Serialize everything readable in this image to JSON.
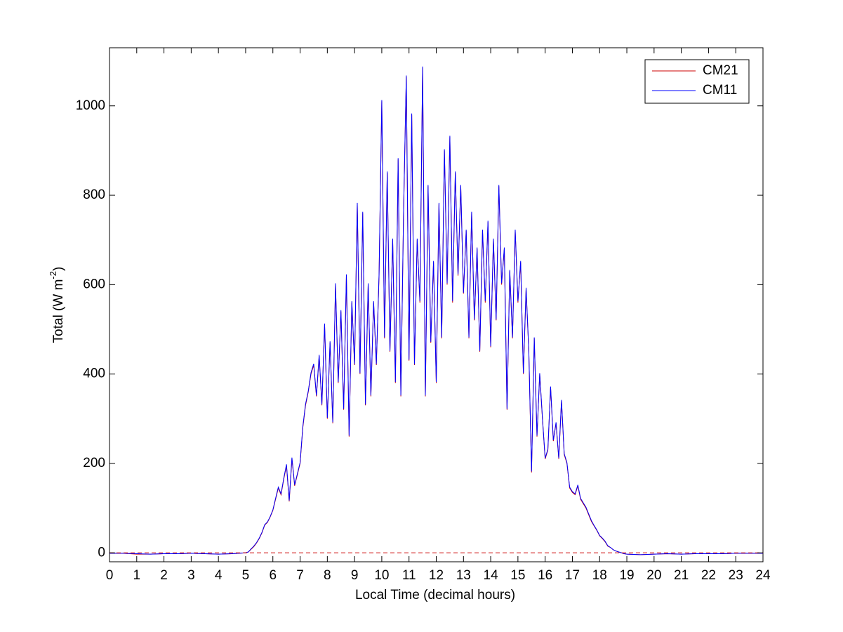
{
  "chart_data": {
    "type": "line",
    "xlabel": "Local Time (decimal hours)",
    "ylabel": {
      "text": "Total (W m",
      "superscript": "-2",
      "suffix": ")"
    },
    "legend": "upper right",
    "xlim": [
      0,
      24
    ],
    "ylim": [
      -20,
      1130
    ],
    "xticks": [
      0,
      1,
      2,
      3,
      4,
      5,
      6,
      7,
      8,
      9,
      10,
      11,
      12,
      13,
      14,
      15,
      16,
      17,
      18,
      19,
      20,
      21,
      22,
      23,
      24
    ],
    "yticks": [
      0,
      200,
      400,
      600,
      800,
      1000
    ],
    "reference_line": {
      "value": 0,
      "color": "#cc0000"
    },
    "x": [
      0,
      0.5,
      1,
      1.5,
      2,
      2.5,
      3,
      3.5,
      4,
      4.5,
      5.0,
      5.1,
      5.2,
      5.3,
      5.4,
      5.5,
      5.6,
      5.7,
      5.8,
      5.9,
      6.0,
      6.1,
      6.2,
      6.3,
      6.4,
      6.5,
      6.6,
      6.7,
      6.8,
      6.9,
      7.0,
      7.1,
      7.2,
      7.3,
      7.4,
      7.5,
      7.6,
      7.7,
      7.8,
      7.9,
      8.0,
      8.1,
      8.2,
      8.3,
      8.4,
      8.5,
      8.6,
      8.7,
      8.8,
      8.9,
      9.0,
      9.1,
      9.2,
      9.3,
      9.4,
      9.5,
      9.6,
      9.7,
      9.8,
      9.9,
      10.0,
      10.1,
      10.2,
      10.3,
      10.4,
      10.5,
      10.6,
      10.7,
      10.8,
      10.9,
      11.0,
      11.1,
      11.2,
      11.3,
      11.4,
      11.5,
      11.6,
      11.7,
      11.8,
      11.9,
      12.0,
      12.1,
      12.2,
      12.3,
      12.4,
      12.5,
      12.6,
      12.7,
      12.8,
      12.9,
      13.0,
      13.1,
      13.2,
      13.3,
      13.4,
      13.5,
      13.6,
      13.7,
      13.8,
      13.9,
      14.0,
      14.1,
      14.2,
      14.3,
      14.4,
      14.5,
      14.6,
      14.7,
      14.8,
      14.9,
      15.0,
      15.1,
      15.2,
      15.3,
      15.4,
      15.5,
      15.6,
      15.7,
      15.8,
      15.9,
      16.0,
      16.1,
      16.2,
      16.3,
      16.4,
      16.5,
      16.6,
      16.7,
      16.8,
      16.9,
      17.0,
      17.1,
      17.2,
      17.3,
      17.4,
      17.5,
      17.6,
      17.7,
      17.8,
      17.9,
      18.0,
      18.1,
      18.2,
      18.3,
      18.4,
      18.5,
      18.6,
      18.7,
      18.8,
      18.9,
      19.0,
      19.5,
      20,
      20.5,
      21,
      21.5,
      22,
      22.5,
      23,
      23.5,
      24
    ],
    "series": [
      {
        "name": "CM21",
        "color": "#cc0000",
        "values": [
          -1,
          -1,
          -3,
          -3,
          -2,
          -2,
          -1,
          -2,
          -3,
          -2,
          0,
          2,
          8,
          14,
          22,
          32,
          45,
          62,
          68,
          80,
          95,
          120,
          145,
          130,
          165,
          195,
          115,
          210,
          150,
          175,
          200,
          280,
          330,
          360,
          400,
          420,
          350,
          440,
          330,
          510,
          300,
          470,
          290,
          600,
          380,
          540,
          320,
          620,
          260,
          560,
          420,
          780,
          400,
          760,
          330,
          600,
          350,
          560,
          420,
          620,
          1010,
          480,
          850,
          450,
          700,
          380,
          880,
          350,
          760,
          1065,
          430,
          980,
          420,
          700,
          560,
          1085,
          350,
          820,
          470,
          650,
          380,
          780,
          480,
          900,
          600,
          930,
          560,
          850,
          620,
          820,
          580,
          720,
          480,
          760,
          520,
          680,
          450,
          720,
          560,
          740,
          460,
          700,
          520,
          820,
          600,
          680,
          320,
          630,
          480,
          720,
          560,
          650,
          400,
          590,
          450,
          180,
          480,
          260,
          400,
          300,
          210,
          230,
          370,
          250,
          290,
          210,
          340,
          220,
          200,
          145,
          135,
          130,
          150,
          120,
          110,
          100,
          85,
          70,
          60,
          50,
          38,
          32,
          25,
          15,
          12,
          7,
          4,
          2,
          0,
          -2,
          -3,
          -4,
          -3,
          -2,
          -3,
          -2,
          -2,
          -2,
          -1,
          -1,
          -1
        ]
      },
      {
        "name": "CM11",
        "color": "#0000ff",
        "values": [
          -1,
          -1,
          -2,
          -3,
          -2,
          -2,
          -1,
          -2,
          -3,
          -2,
          0,
          2,
          9,
          15,
          23,
          33,
          46,
          63,
          69,
          81,
          96,
          122,
          147,
          132,
          167,
          198,
          117,
          213,
          152,
          177,
          202,
          283,
          333,
          362,
          403,
          423,
          352,
          443,
          332,
          513,
          302,
          473,
          292,
          603,
          382,
          543,
          322,
          623,
          262,
          563,
          422,
          783,
          402,
          763,
          332,
          603,
          352,
          563,
          422,
          623,
          1013,
          482,
          853,
          452,
          703,
          382,
          883,
          352,
          763,
          1068,
          432,
          983,
          422,
          703,
          563,
          1088,
          352,
          823,
          472,
          653,
          382,
          783,
          482,
          903,
          603,
          933,
          563,
          853,
          623,
          823,
          582,
          723,
          482,
          763,
          522,
          683,
          452,
          723,
          563,
          743,
          462,
          703,
          522,
          823,
          603,
          683,
          322,
          633,
          482,
          723,
          563,
          653,
          402,
          593,
          452,
          182,
          482,
          262,
          402,
          302,
          212,
          232,
          372,
          252,
          292,
          212,
          342,
          222,
          202,
          147,
          137,
          132,
          152,
          122,
          112,
          102,
          87,
          72,
          61,
          51,
          39,
          33,
          26,
          16,
          12,
          7,
          4,
          2,
          0,
          -2,
          -3,
          -4,
          -3,
          -2,
          -3,
          -2,
          -2,
          -2,
          -1,
          -1,
          -1
        ]
      }
    ]
  }
}
